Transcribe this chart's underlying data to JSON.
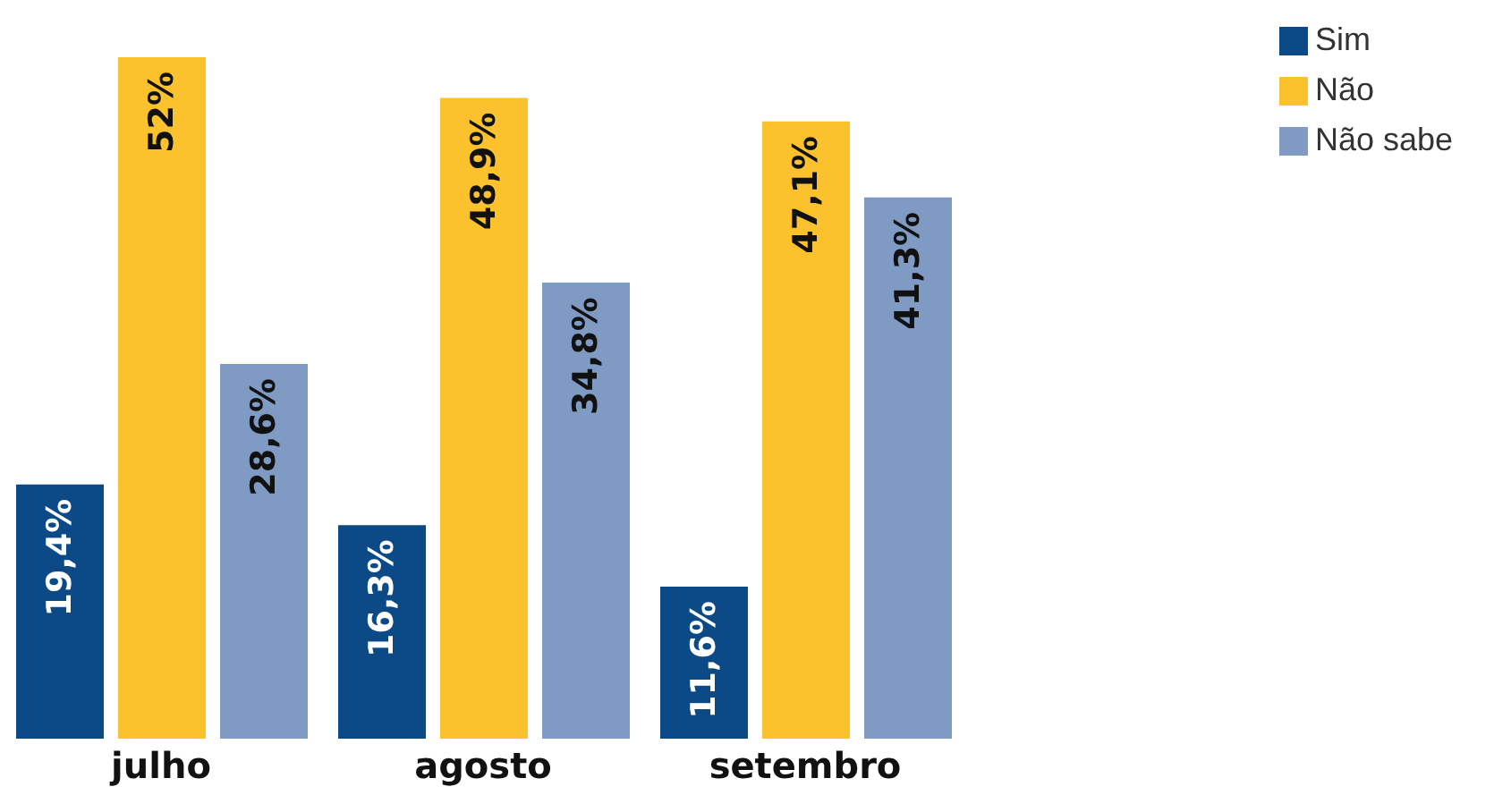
{
  "chart_data": {
    "type": "bar",
    "categories": [
      "julho",
      "agosto",
      "setembro"
    ],
    "legend": "top right",
    "series": [
      {
        "name": "Sim",
        "color": "#0b4a87",
        "values": [
          19.4,
          16.3,
          11.6
        ],
        "value_labels": [
          "19,4%",
          "16,3%",
          "11,6%"
        ]
      },
      {
        "name": "Não",
        "color": "#fcc22e",
        "values": [
          52,
          48.9,
          47.1
        ],
        "value_labels": [
          "52%",
          "48,9%",
          "47,1%"
        ]
      },
      {
        "name": "Não sabe",
        "color": "#7f9bc4",
        "values": [
          28.6,
          34.8,
          41.3
        ],
        "value_labels": [
          "28,6%",
          "34,8%",
          "41,3%"
        ]
      }
    ]
  }
}
